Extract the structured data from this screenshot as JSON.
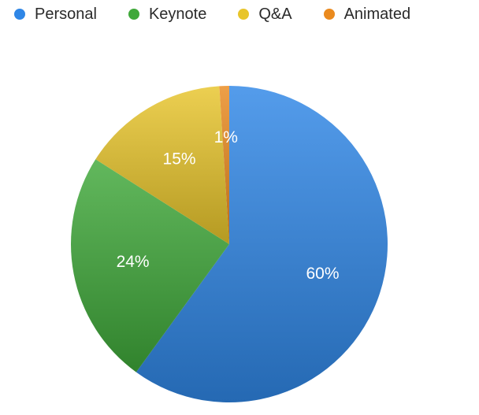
{
  "chart_data": {
    "type": "pie",
    "title": "",
    "legend_position": "top",
    "slices": [
      {
        "name": "Personal",
        "value": 60,
        "label": "60%",
        "color": "#2f86e6"
      },
      {
        "name": "Keynote",
        "value": 24,
        "label": "24%",
        "color": "#3fa83a"
      },
      {
        "name": "Q&A",
        "value": 15,
        "label": "15%",
        "color": "#e8c52b"
      },
      {
        "name": "Animated",
        "value": 1,
        "label": "1%",
        "color": "#ea8a1e"
      }
    ]
  }
}
